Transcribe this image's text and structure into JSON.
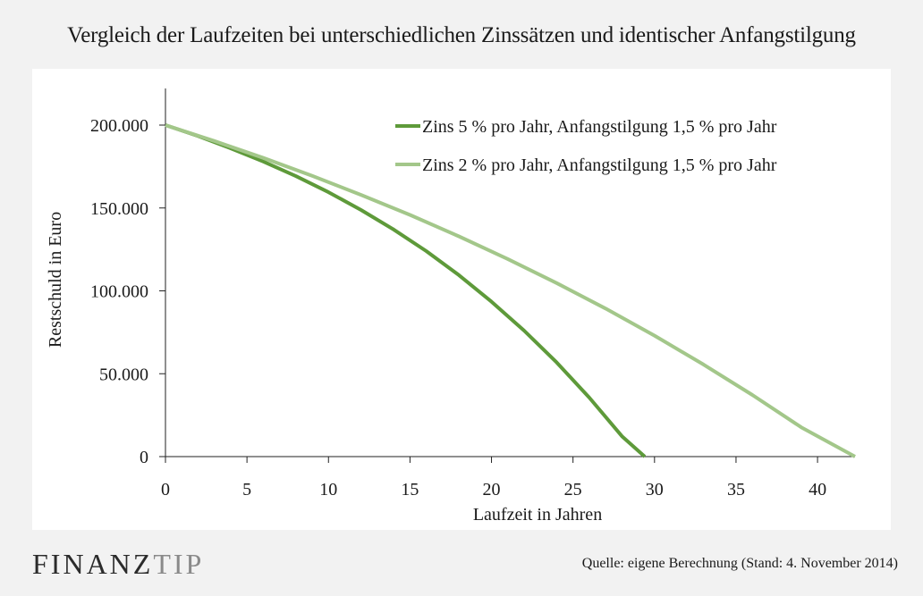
{
  "page": {
    "title": "Vergleich der Laufzeiten bei unterschiedlichen Zinssätzen und identischer Anfangstilgung",
    "brand_part1": "FINANZ",
    "brand_part2": "TIP",
    "source": "Quelle:  eigene Berechnung  (Stand: 4. November 2014)"
  },
  "chart_data": {
    "type": "line",
    "title": "Vergleich der Laufzeiten bei unterschiedlichen Zinssätzen und identischer Anfangstilgung",
    "xlabel": "Laufzeit in Jahren",
    "ylabel": "Restschuld in Euro",
    "xlim": [
      0,
      42.3
    ],
    "ylim": [
      0,
      200000
    ],
    "xticks": [
      0,
      5,
      10,
      15,
      20,
      25,
      30,
      35,
      40
    ],
    "yticks": [
      0,
      50000,
      100000,
      150000,
      200000
    ],
    "ytick_labels": [
      "0",
      "50.000",
      "100.000",
      "150.000",
      "200.000"
    ],
    "legend_position": "top-right",
    "grid": false,
    "series": [
      {
        "name": "Zins 5 % pro Jahr, Anfangstilgung 1,5 % pro Jahr",
        "color": "#5e9a3a",
        "x": [
          0,
          2,
          4,
          6,
          8,
          10,
          12,
          14,
          16,
          18,
          20,
          22,
          24,
          26,
          28,
          29.4
        ],
        "y": [
          200000,
          193400,
          186000,
          178000,
          169200,
          159500,
          148800,
          137000,
          124000,
          109500,
          93500,
          76000,
          56800,
          35600,
          12300,
          0
        ]
      },
      {
        "name": "Zins 2 % pro Jahr, Anfangstilgung 1,5 % pro Jahr",
        "color": "#a3c78a",
        "x": [
          0,
          3,
          6,
          9,
          12,
          15,
          18,
          21,
          24,
          27,
          30,
          33,
          36,
          39,
          42.3
        ],
        "y": [
          200000,
          190400,
          180200,
          169400,
          157900,
          145800,
          132900,
          119200,
          104700,
          89300,
          73000,
          55600,
          37200,
          17700,
          0
        ]
      }
    ]
  }
}
